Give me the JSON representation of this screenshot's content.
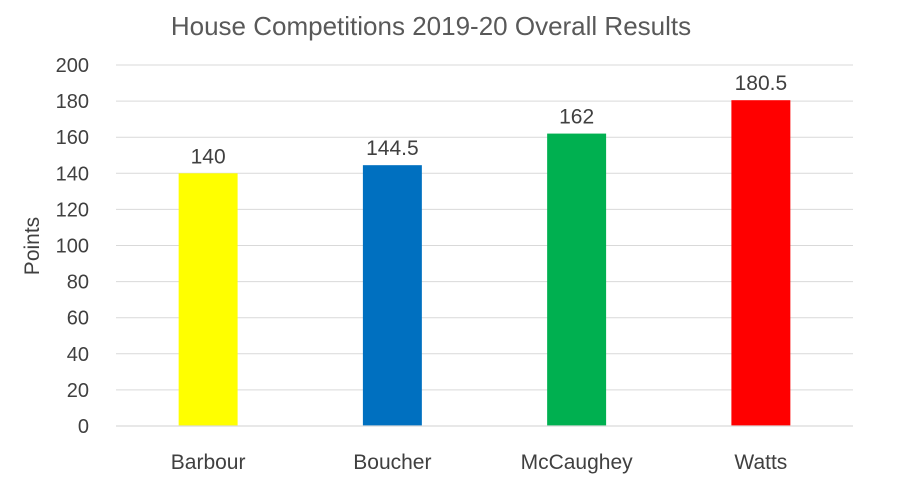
{
  "chart_data": {
    "type": "bar",
    "title": "House Competitions 2019-20 Overall Results",
    "xlabel": "",
    "ylabel": "Points",
    "categories": [
      "Barbour",
      "Boucher",
      "McCaughey",
      "Watts"
    ],
    "values": [
      140,
      144.5,
      162,
      180.5
    ],
    "value_labels": [
      "140",
      "144.5",
      "162",
      "180.5"
    ],
    "colors": [
      "#ffff00",
      "#0070c0",
      "#00b050",
      "#ff0000"
    ],
    "ylim": [
      0,
      200
    ],
    "yticks": [
      "0",
      "20",
      "40",
      "60",
      "80",
      "100",
      "120",
      "140",
      "160",
      "180",
      "200"
    ],
    "grid": true,
    "legend": "none"
  }
}
